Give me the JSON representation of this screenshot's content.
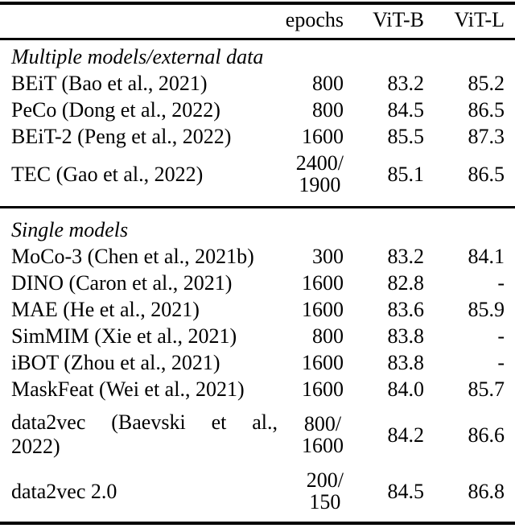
{
  "table": {
    "headers": [
      "epochs",
      "ViT-B",
      "ViT-L"
    ],
    "missing_value_symbol": "-",
    "text_color": "#000000",
    "background_color": "#ffffff",
    "sections": [
      {
        "title": "Multiple models/external data",
        "rows": [
          {
            "model": "BEiT (Bao et al., 2021)",
            "epochs": "800",
            "vitb": "83.2",
            "vitl": "85.2"
          },
          {
            "model": "PeCo (Dong et al., 2022)",
            "epochs": "800",
            "vitb": "84.5",
            "vitl": "86.5"
          },
          {
            "model": "BEiT-2 (Peng et al., 2022)",
            "epochs": "1600",
            "vitb": "85.5",
            "vitl": "87.3"
          },
          {
            "model": "TEC (Gao et al., 2022)",
            "epochs": [
              "2400/",
              "1900"
            ],
            "vitb": "85.1",
            "vitl": "86.5"
          }
        ]
      },
      {
        "title": "Single models",
        "rows": [
          {
            "model": "MoCo-3 (Chen et al., 2021b)",
            "epochs": "300",
            "vitb": "83.2",
            "vitl": "84.1"
          },
          {
            "model": "DINO (Caron et al., 2021)",
            "epochs": "1600",
            "vitb": "82.8",
            "vitl": "-"
          },
          {
            "model": "MAE (He et al., 2021)",
            "epochs": "1600",
            "vitb": "83.6",
            "vitl": "85.9"
          },
          {
            "model": "SimMIM (Xie et al., 2021)",
            "epochs": "800",
            "vitb": "83.8",
            "vitl": "-"
          },
          {
            "model": "iBOT (Zhou et al., 2021)",
            "epochs": "1600",
            "vitb": "83.8",
            "vitl": "-"
          },
          {
            "model": "MaskFeat (Wei et al., 2021)",
            "epochs": "1600",
            "vitb": "84.0",
            "vitl": "85.7"
          },
          {
            "model": [
              "data2vec (Baevski et al.,",
              "2022)"
            ],
            "epochs": [
              "800/",
              "1600"
            ],
            "vitb": "84.2",
            "vitl": "86.6"
          },
          {
            "model": "data2vec 2.0",
            "epochs": [
              "200/",
              "150"
            ],
            "vitb": "84.5",
            "vitl": "86.8"
          }
        ]
      }
    ]
  }
}
